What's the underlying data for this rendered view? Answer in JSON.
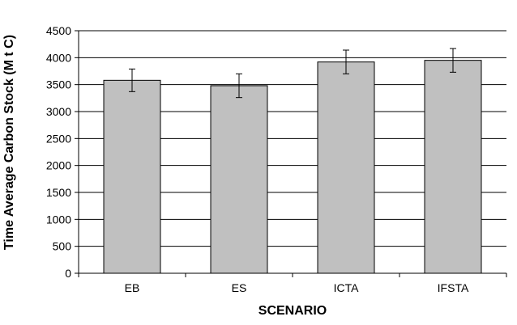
{
  "chart_data": {
    "type": "bar",
    "xlabel": "SCENARIO",
    "ylabel": "Time Average Carbon Stock (M t C)",
    "categories": [
      "EB",
      "ES",
      "ICTA",
      "IFSTA"
    ],
    "values": [
      3580,
      3480,
      3920,
      3950
    ],
    "error_upper": [
      3790,
      3700,
      4140,
      4170
    ],
    "error_lower": [
      3370,
      3260,
      3700,
      3730
    ],
    "ylim": [
      0,
      4500
    ],
    "yticks": [
      0,
      500,
      1000,
      1500,
      2000,
      2500,
      3000,
      3500,
      4000,
      4500
    ],
    "grid": true,
    "colors": {
      "bar_fill": "#c0c0c0",
      "bar_stroke": "#000000",
      "grid": "#000000",
      "axis": "#000000"
    }
  }
}
